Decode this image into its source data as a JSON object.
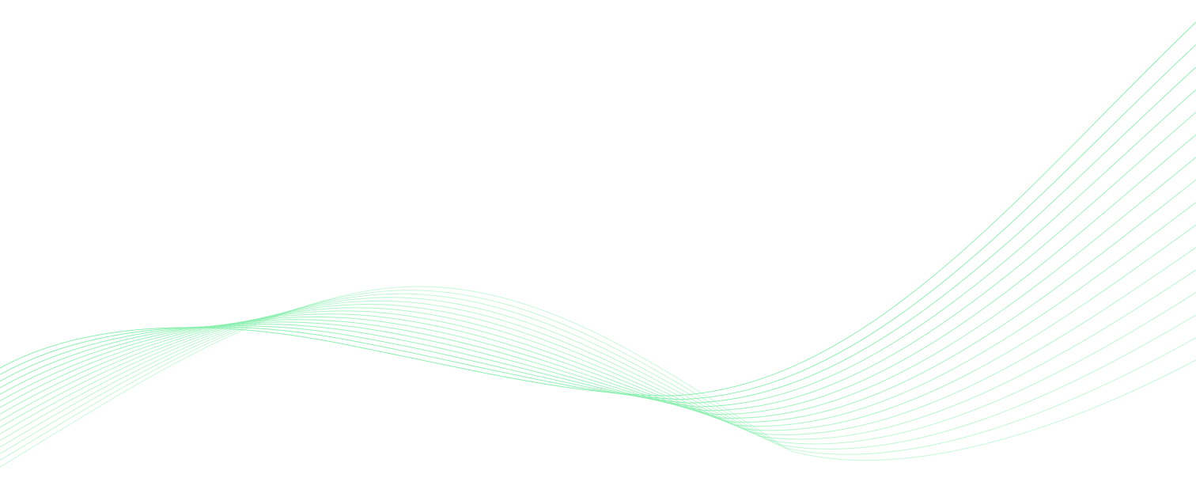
{
  "background": {
    "color": "#ffffff",
    "wave": {
      "line_count": 16,
      "stroke_color": "#86efac"
    }
  }
}
